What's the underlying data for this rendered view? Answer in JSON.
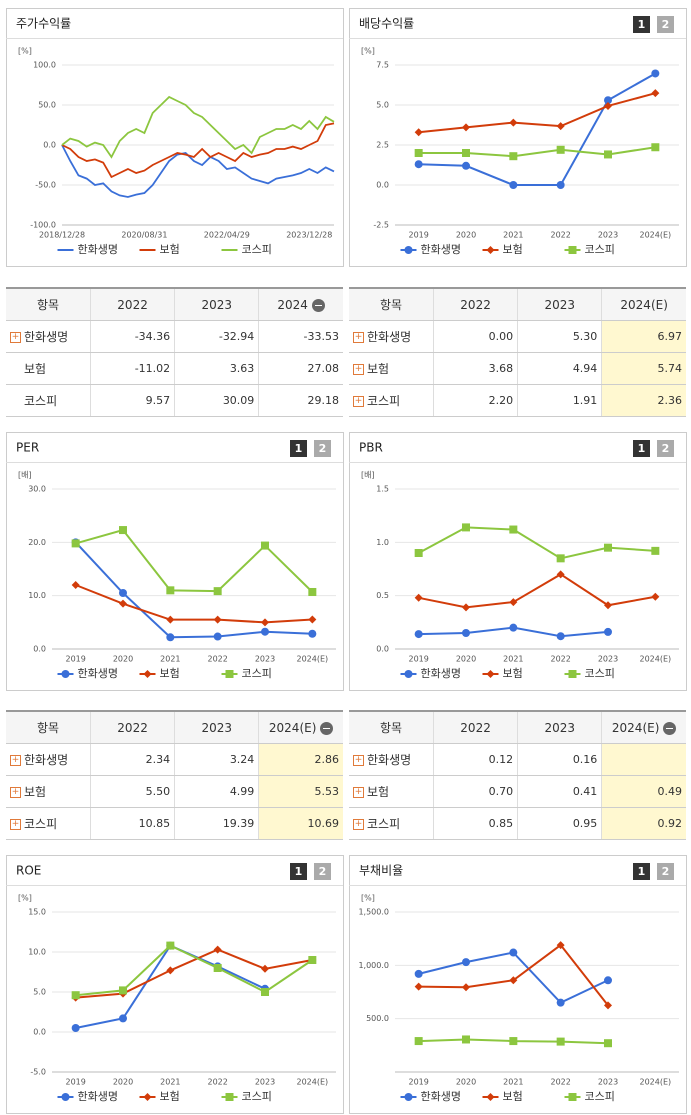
{
  "chart_data": [
    {
      "type": "line",
      "title": "주가수익률",
      "unit": "[%]",
      "markers": false,
      "grid": true,
      "categories": [
        "2018/12/28",
        null,
        null,
        null,
        null,
        null,
        null,
        null,
        null,
        null,
        "2020/08/31",
        null,
        null,
        null,
        null,
        null,
        null,
        null,
        null,
        null,
        "2022/04/29",
        null,
        null,
        null,
        null,
        null,
        null,
        null,
        null,
        null,
        "2023/12/28",
        null,
        null,
        null
      ],
      "ylim": [
        -100,
        100
      ],
      "yticks": [
        {
          "value": -100,
          "label": "-100.0"
        },
        {
          "value": -50,
          "label": "-50.0"
        },
        {
          "value": 0,
          "label": "0.0"
        },
        {
          "value": 50,
          "label": "50.0"
        },
        {
          "value": 100,
          "label": "100.0"
        }
      ],
      "series": [
        {
          "name": "한화생명",
          "color": "#3a6fd8",
          "marker": "circle",
          "values": [
            0,
            -20,
            -38,
            -42,
            -50,
            -48,
            -58,
            -63,
            -65,
            -62,
            -60,
            -50,
            -35,
            -20,
            -12,
            -10,
            -20,
            -25,
            -15,
            -20,
            -30,
            -28,
            -35,
            -42,
            -45,
            -48,
            -42,
            -40,
            -38,
            -35,
            -30,
            -35,
            -28,
            -33
          ]
        },
        {
          "name": "보험",
          "color": "#d23c0a",
          "marker": "diamond",
          "values": [
            0,
            -5,
            -15,
            -20,
            -18,
            -22,
            -40,
            -35,
            -30,
            -35,
            -32,
            -25,
            -20,
            -15,
            -10,
            -12,
            -15,
            -5,
            -15,
            -10,
            -15,
            -20,
            -10,
            -15,
            -12,
            -10,
            -5,
            -5,
            -2,
            -5,
            0,
            5,
            25,
            27
          ]
        },
        {
          "name": "코스피",
          "color": "#8cc63f",
          "marker": "square",
          "values": [
            0,
            8,
            5,
            -2,
            3,
            0,
            -15,
            5,
            15,
            20,
            15,
            40,
            50,
            60,
            55,
            50,
            40,
            35,
            25,
            15,
            5,
            -5,
            0,
            -10,
            10,
            15,
            20,
            20,
            25,
            20,
            30,
            20,
            35,
            29
          ]
        }
      ]
    },
    {
      "type": "line",
      "title": "배당수익률",
      "unit": "[%]",
      "markers": true,
      "grid": true,
      "buttons": [
        "1",
        "2"
      ],
      "categories": [
        "2019",
        "2020",
        "2021",
        "2022",
        "2023",
        "2024(E)"
      ],
      "ylim": [
        -2.5,
        7.5
      ],
      "yticks": [
        -2.5,
        {
          "value": 0,
          "label": "0.0"
        },
        2.5,
        {
          "value": 5,
          "label": "5.0"
        },
        7.5
      ],
      "series": [
        {
          "name": "한화생명",
          "color": "#3a6fd8",
          "marker": "circle",
          "values": [
            1.3,
            1.2,
            0.0,
            0.0,
            5.3,
            6.97
          ]
        },
        {
          "name": "보험",
          "color": "#d23c0a",
          "marker": "diamond",
          "values": [
            3.3,
            3.6,
            3.9,
            3.68,
            4.94,
            5.74
          ]
        },
        {
          "name": "코스피",
          "color": "#8cc63f",
          "marker": "square",
          "values": [
            2.0,
            2.0,
            1.8,
            2.2,
            1.91,
            2.36
          ]
        }
      ]
    },
    {
      "type": "line",
      "title": "PER",
      "unit": "[배]",
      "markers": true,
      "grid": true,
      "buttons": [
        "1",
        "2"
      ],
      "categories": [
        "2019",
        "2020",
        "2021",
        "2022",
        "2023",
        "2024(E)"
      ],
      "ylim": [
        0,
        30
      ],
      "yticks": [
        {
          "value": 0,
          "label": "0.0"
        },
        {
          "value": 10,
          "label": "10.0"
        },
        {
          "value": 20,
          "label": "20.0"
        },
        {
          "value": 30,
          "label": "30.0"
        }
      ],
      "series": [
        {
          "name": "한화생명",
          "color": "#3a6fd8",
          "marker": "circle",
          "values": [
            20.0,
            10.5,
            2.2,
            2.34,
            3.24,
            2.86
          ]
        },
        {
          "name": "보험",
          "color": "#d23c0a",
          "marker": "diamond",
          "values": [
            12.0,
            8.5,
            5.5,
            5.5,
            4.99,
            5.53
          ]
        },
        {
          "name": "코스피",
          "color": "#8cc63f",
          "marker": "square",
          "values": [
            19.8,
            22.3,
            11.0,
            10.85,
            19.39,
            10.69
          ]
        }
      ]
    },
    {
      "type": "line",
      "title": "PBR",
      "unit": "[배]",
      "markers": true,
      "grid": true,
      "buttons": [
        "1",
        "2"
      ],
      "categories": [
        "2019",
        "2020",
        "2021",
        "2022",
        "2023",
        "2024(E)"
      ],
      "ylim": [
        0,
        1.5
      ],
      "yticks": [
        {
          "value": 0,
          "label": "0.0"
        },
        0.5,
        {
          "value": 1,
          "label": "1.0"
        },
        1.5
      ],
      "series": [
        {
          "name": "한화생명",
          "color": "#3a6fd8",
          "marker": "circle",
          "values": [
            0.14,
            0.15,
            0.2,
            0.12,
            0.16,
            null
          ]
        },
        {
          "name": "보험",
          "color": "#d23c0a",
          "marker": "diamond",
          "values": [
            0.48,
            0.39,
            0.44,
            0.7,
            0.41,
            0.49
          ]
        },
        {
          "name": "코스피",
          "color": "#8cc63f",
          "marker": "square",
          "values": [
            0.9,
            1.14,
            1.12,
            0.85,
            0.95,
            0.92
          ]
        }
      ]
    },
    {
      "type": "line",
      "title": "ROE",
      "unit": "[%]",
      "markers": true,
      "grid": true,
      "buttons": [
        "1",
        "2"
      ],
      "categories": [
        "2019",
        "2020",
        "2021",
        "2022",
        "2023",
        "2024(E)"
      ],
      "ylim": [
        -5,
        15
      ],
      "yticks": [
        {
          "value": -5,
          "label": "-5.0"
        },
        {
          "value": 0,
          "label": "0.0"
        },
        {
          "value": 5,
          "label": "5.0"
        },
        {
          "value": 10,
          "label": "10.0"
        },
        {
          "value": 15,
          "label": "15.0"
        }
      ],
      "series": [
        {
          "name": "한화생명",
          "color": "#3a6fd8",
          "marker": "circle",
          "values": [
            0.5,
            1.7,
            10.8,
            8.2,
            5.4,
            null
          ]
        },
        {
          "name": "보험",
          "color": "#d23c0a",
          "marker": "diamond",
          "values": [
            4.3,
            4.8,
            7.7,
            10.3,
            7.9,
            9.0
          ]
        },
        {
          "name": "코스피",
          "color": "#8cc63f",
          "marker": "square",
          "values": [
            4.6,
            5.2,
            10.8,
            8.0,
            5.0,
            9.0
          ]
        }
      ]
    },
    {
      "type": "line",
      "title": "부채비율",
      "unit": "[%]",
      "markers": true,
      "grid": true,
      "buttons": [
        "1",
        "2"
      ],
      "categories": [
        "2019",
        "2020",
        "2021",
        "2022",
        "2023",
        "2024(E)"
      ],
      "ylim": [
        0,
        1500
      ],
      "yticks": [
        {
          "value": 500,
          "label": "500.0"
        },
        {
          "value": 1000,
          "label": "1,000.0"
        },
        {
          "value": 1500,
          "label": "1,500.0"
        }
      ],
      "series": [
        {
          "name": "한화생명",
          "color": "#3a6fd8",
          "marker": "circle",
          "values": [
            920,
            1030,
            1120,
            650,
            860,
            null
          ]
        },
        {
          "name": "보험",
          "color": "#d23c0a",
          "marker": "diamond",
          "values": [
            800,
            795,
            860,
            1190,
            625,
            null
          ]
        },
        {
          "name": "코스피",
          "color": "#8cc63f",
          "marker": "square",
          "values": [
            290,
            305,
            290,
            285,
            270,
            null
          ]
        }
      ]
    }
  ],
  "tables": [
    {
      "header": [
        "항목",
        "2022",
        "2023",
        "2024"
      ],
      "rows": [
        [
          "한화생명",
          "-34.36",
          "-32.94",
          "-33.53"
        ],
        [
          "보험",
          "-11.02",
          "3.63",
          "27.08"
        ],
        [
          "코스피",
          "9.57",
          "30.09",
          "29.18"
        ]
      ]
    },
    {
      "header": [
        "항목",
        "2022",
        "2023",
        "2024(E)"
      ],
      "rows": [
        [
          "한화생명",
          "0.00",
          "5.30",
          "6.97"
        ],
        [
          "보험",
          "3.68",
          "4.94",
          "5.74"
        ],
        [
          "코스피",
          "2.20",
          "1.91",
          "2.36"
        ]
      ]
    },
    {
      "header": [
        "항목",
        "2022",
        "2023",
        "2024(E)"
      ],
      "rows": [
        [
          "한화생명",
          "2.34",
          "3.24",
          "2.86"
        ],
        [
          "보험",
          "5.50",
          "4.99",
          "5.53"
        ],
        [
          "코스피",
          "10.85",
          "19.39",
          "10.69"
        ]
      ]
    },
    {
      "header": [
        "항목",
        "2022",
        "2023",
        "2024(E)"
      ],
      "rows": [
        [
          "한화생명",
          "0.12",
          "0.16",
          null
        ],
        [
          "보험",
          "0.70",
          "0.41",
          "0.49"
        ],
        [
          "코스피",
          "0.85",
          "0.95",
          "0.92"
        ]
      ]
    }
  ]
}
